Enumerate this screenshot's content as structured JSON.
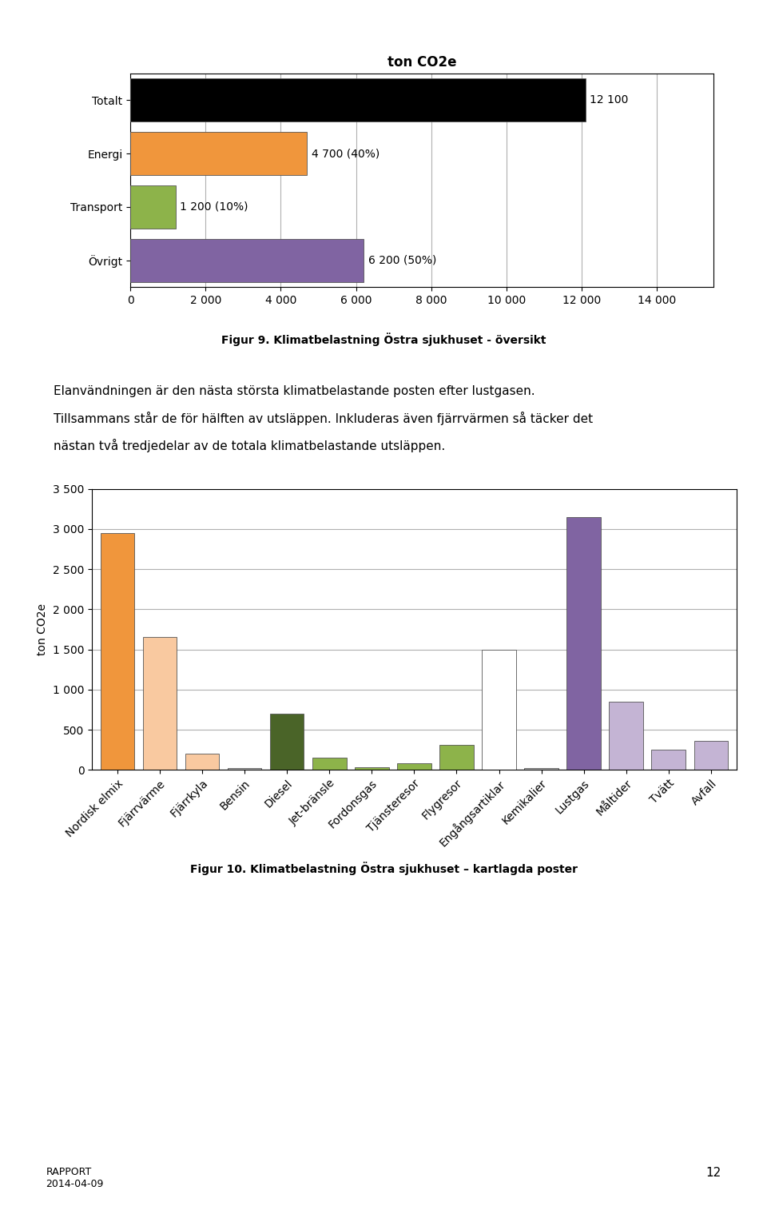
{
  "chart_data": [
    {
      "type": "bar",
      "orientation": "horizontal",
      "title": "ton CO2e",
      "categories": [
        "Totalt",
        "Energi",
        "Transport",
        "Övrigt"
      ],
      "values": [
        12100,
        4700,
        1200,
        6200
      ],
      "value_labels": [
        "12 100",
        "4 700 (40%)",
        "1 200 (10%)",
        "6 200 (50%)"
      ],
      "data_labels": true,
      "colors": [
        "#000000",
        "#f0963c",
        "#8db34a",
        "#8064a2"
      ],
      "xlim": [
        0,
        15500
      ],
      "xticks": [
        0,
        {
          "value": 2000,
          "label": "2 000"
        },
        {
          "value": 4000,
          "label": "4 000"
        },
        {
          "value": 6000,
          "label": "6 000"
        },
        {
          "value": 8000,
          "label": "8 000"
        },
        {
          "value": 10000,
          "label": "10 000"
        },
        {
          "value": 12000,
          "label": "12 000"
        },
        {
          "value": 14000,
          "label": "14 000"
        }
      ],
      "grid": true,
      "annotations": [
        "Figur 9. Klimatbelastning Östra sjukhuset - översikt"
      ]
    },
    {
      "type": "bar",
      "ylabel": "ton CO2e",
      "categories": [
        "Nordisk elmix",
        "Fjärrvärme",
        "Fjärrkyla",
        "Bensin",
        "Diesel",
        "Jet-bränsle",
        "Fordonsgas",
        "Tjänsteresor",
        "Flygresor",
        "Engångsartiklar",
        "Kemikalier",
        "Lustgas",
        "Måltider",
        "Tvätt",
        "Avfall"
      ],
      "values": [
        2950,
        1650,
        200,
        20,
        700,
        150,
        30,
        80,
        310,
        1500,
        20,
        3150,
        850,
        250,
        360
      ],
      "colors": [
        "#f0963c",
        "#f9c9a0",
        "#f9c9a0",
        "#bbbbbb",
        "#4a6428",
        "#8db34a",
        "#8db34a",
        "#8db34a",
        "#8db34a",
        "#ffffff",
        "#bbbbbb",
        "#8064a2",
        "#c4b4d4",
        "#c4b4d4",
        "#c4b4d4"
      ],
      "ylim": [
        0,
        3500
      ],
      "yticks": [
        0,
        500,
        {
          "value": 1000,
          "label": "1 000"
        },
        {
          "value": 1500,
          "label": "1 500"
        },
        {
          "value": 2000,
          "label": "2 000"
        },
        {
          "value": 2500,
          "label": "2 500"
        },
        {
          "value": 3000,
          "label": "3 000"
        },
        {
          "value": 3500,
          "label": "3 500"
        }
      ],
      "grid": true,
      "annotations": [
        "Figur 10. Klimatbelastning Östra sjukhuset – kartlagda poster"
      ]
    }
  ],
  "annotations": [
    "Elanvändningen är den nästa största klimatbelastande posten efter lustgasen.",
    "Tillsammans står de för hälften av utsläppen. Inkluderas även fjärrvärmen så täcker det",
    "nästan två tredjedelar av de totala klimatbelastande utsläppen.",
    "RAPPORT\n2014-04-09",
    "12"
  ]
}
